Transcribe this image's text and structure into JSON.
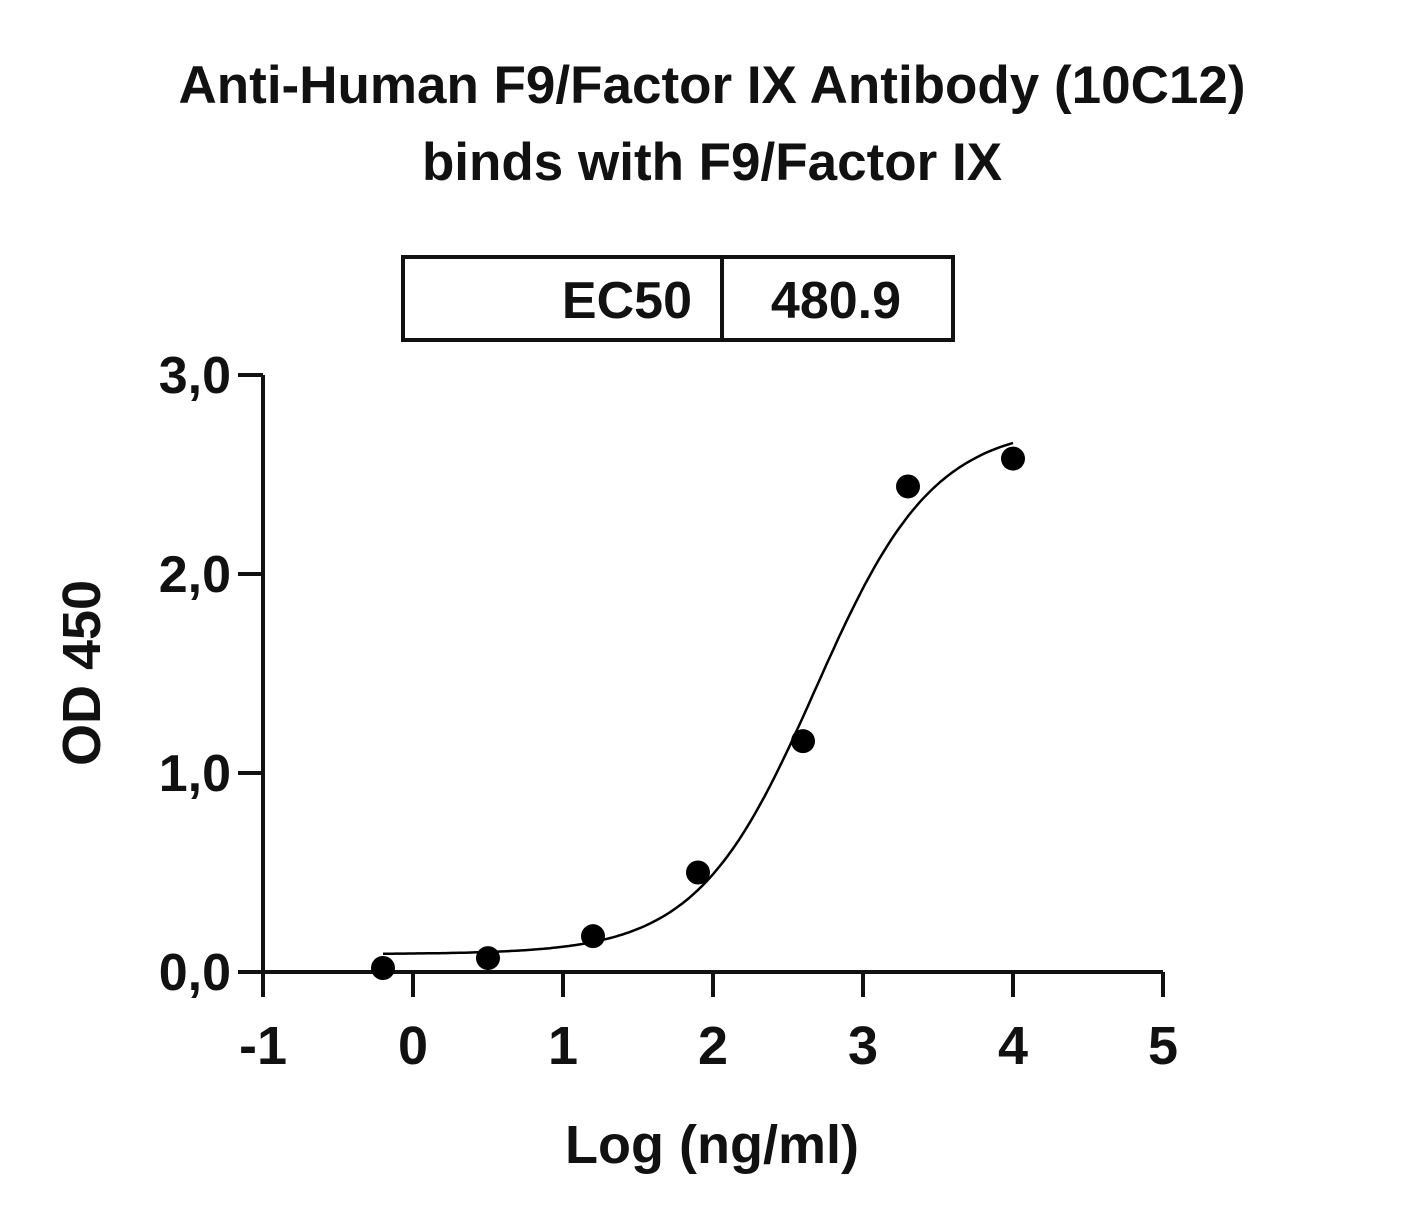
{
  "chart_data": {
    "type": "scatter",
    "title": [
      "Anti-Human F9/Factor IX Antibody (10C12)",
      "binds with F9/Factor IX"
    ],
    "xlabel": "Log (ng/ml)",
    "ylabel": "OD 450",
    "xlim": [
      -1,
      5
    ],
    "ylim": [
      0,
      3
    ],
    "xticks": [
      -1,
      0,
      1,
      2,
      3,
      4,
      5
    ],
    "xtick_labels": [
      "-1",
      "0",
      "1",
      "2",
      "3",
      "4",
      "5"
    ],
    "yticks": [
      0,
      1,
      2,
      3
    ],
    "ytick_labels": [
      "0,0",
      "1,0",
      "2,0",
      "3,0"
    ],
    "grid": false,
    "points": {
      "x": [
        -0.2,
        0.5,
        1.2,
        1.9,
        2.6,
        3.3,
        4.0
      ],
      "y": [
        0.02,
        0.07,
        0.18,
        0.5,
        1.16,
        2.44,
        2.58
      ]
    },
    "fit_curve": {
      "model": "4PL sigmoidal",
      "bottom": 0.09,
      "top": 2.75,
      "logEC50": 2.682,
      "hill": 1.1,
      "x_range": [
        -0.2,
        4.0
      ]
    },
    "table": {
      "label": "EC50",
      "value": "480.9"
    },
    "colors": {
      "points": "#000000",
      "curve": "#000000"
    }
  }
}
